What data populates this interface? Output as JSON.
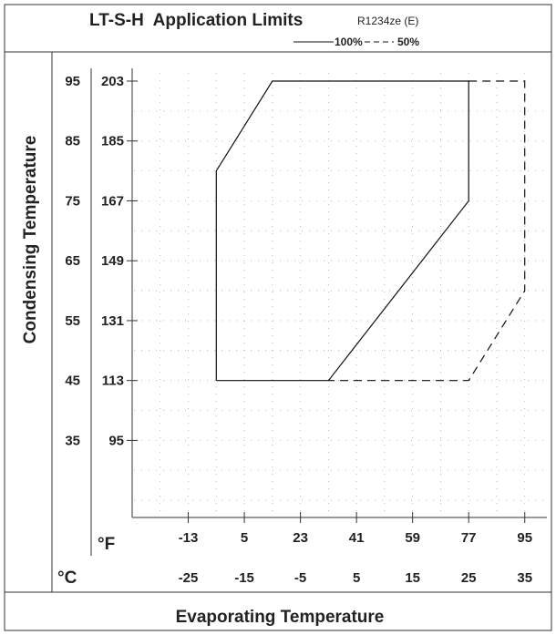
{
  "chart_data": {
    "type": "line",
    "title": "LT-S-H  Application Limits",
    "refrigerant": "R1234ze (E)",
    "xlabel": "Evaporating Temperature",
    "ylabel": "Condensing Temperature",
    "x_unit_f": "°F",
    "x_unit_c": "°C",
    "xlim_c": [
      -35,
      40
    ],
    "ylim_c": [
      20,
      95
    ],
    "x_ticks_f": [
      "-13",
      "5",
      "23",
      "41",
      "59",
      "77",
      "95"
    ],
    "x_ticks_c": [
      "-25",
      "-15",
      "-5",
      "5",
      "15",
      "25",
      "35"
    ],
    "y_ticks_f": [
      "95",
      "113",
      "131",
      "149",
      "167",
      "185",
      "203"
    ],
    "y_ticks_c": [
      "35",
      "45",
      "55",
      "65",
      "75",
      "85",
      "95"
    ],
    "grid": "dotted",
    "legend": {
      "placement": "top",
      "entries": [
        {
          "label": "100%",
          "style": "solid"
        },
        {
          "label": "50%",
          "style": "dashed"
        }
      ]
    },
    "series": [
      {
        "name": "100%",
        "style": "solid",
        "points": [
          [
            -20,
            45
          ],
          [
            -20,
            80
          ],
          [
            -10,
            95
          ],
          [
            25,
            95
          ],
          [
            25,
            75
          ],
          [
            0,
            45
          ],
          [
            -20,
            45
          ]
        ]
      },
      {
        "name": "50%",
        "style": "dashed",
        "points": [
          [
            25,
            95
          ],
          [
            35,
            95
          ],
          [
            35,
            60
          ],
          [
            25,
            45
          ],
          [
            0,
            45
          ]
        ]
      }
    ]
  }
}
